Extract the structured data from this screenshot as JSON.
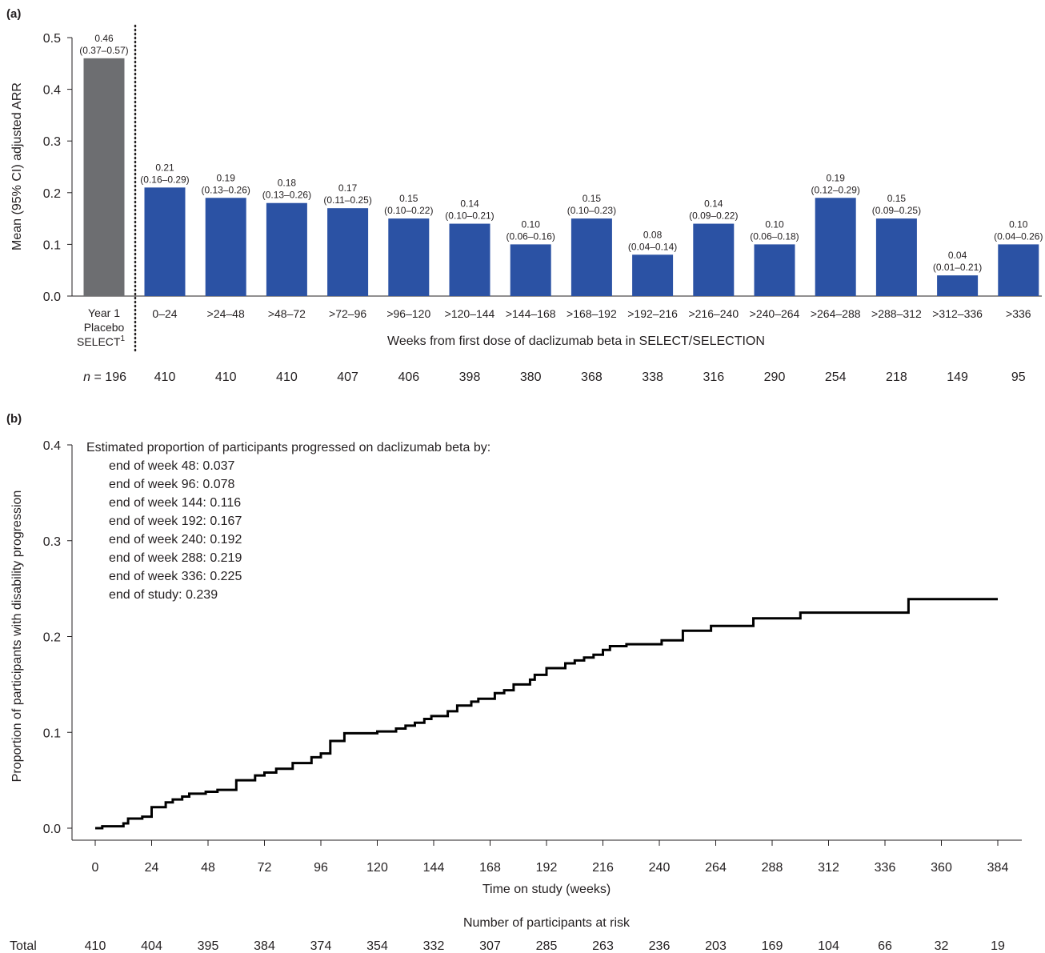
{
  "panel_a": {
    "label": "(a)",
    "n_label_prefix": "n",
    "n_label_suffix": "= 196",
    "n_values": [
      "410",
      "410",
      "410",
      "407",
      "406",
      "398",
      "380",
      "368",
      "338",
      "316",
      "290",
      "254",
      "218",
      "149",
      "95"
    ],
    "placebo_category_lines": [
      "Year 1",
      "Placebo",
      "SELECT"
    ],
    "placebo_superscript": "1"
  },
  "panel_b": {
    "label": "(b)",
    "annotation_title": "Estimated proportion of participants progressed on daclizumab beta by:",
    "annotation_lines": [
      "end of week 48: 0.037",
      "end of week 96: 0.078",
      "end of week 144: 0.116",
      "end of week 192: 0.167",
      "end of week 240: 0.192",
      "end of week 288: 0.219",
      "end of week 336: 0.225",
      "end of study: 0.239"
    ],
    "at_risk_title": "Number of participants at risk",
    "at_risk_row_label": "Total",
    "at_risk_values": [
      "410",
      "404",
      "395",
      "384",
      "374",
      "354",
      "332",
      "307",
      "285",
      "263",
      "236",
      "203",
      "169",
      "104",
      "66",
      "32",
      "19"
    ]
  },
  "colors": {
    "placebo_bar": "#6d6e71",
    "treatment_bar": "#2b52a4",
    "line": "#000000",
    "text": "#231f20"
  },
  "chart_data": [
    {
      "type": "bar",
      "ylabel": "Mean (95% CI) adjusted ARR",
      "xlabel": "Weeks from first dose of daclizumab beta in SELECT/SELECTION",
      "ylim": [
        0,
        0.5
      ],
      "yticks": [
        "0.0",
        "0.1",
        "0.2",
        "0.3",
        "0.4",
        "0.5"
      ],
      "categories": [
        "Year 1 Placebo SELECT1",
        "0–24",
        ">24–48",
        ">48–72",
        ">72–96",
        ">96–120",
        ">120–144",
        ">144–168",
        ">168–192",
        ">192–216",
        ">216–240",
        ">240–264",
        ">264–288",
        ">288–312",
        ">312–336",
        ">336"
      ],
      "values": [
        0.46,
        0.21,
        0.19,
        0.18,
        0.17,
        0.15,
        0.14,
        0.1,
        0.15,
        0.08,
        0.14,
        0.1,
        0.19,
        0.15,
        0.04,
        0.1
      ],
      "value_labels": [
        "0.46",
        "0.21",
        "0.19",
        "0.18",
        "0.17",
        "0.15",
        "0.14",
        "0.10",
        "0.15",
        "0.08",
        "0.14",
        "0.10",
        "0.19",
        "0.15",
        "0.04",
        "0.10"
      ],
      "ci_labels": [
        "(0.37–0.57)",
        "(0.16–0.29)",
        "(0.13–0.26)",
        "(0.13–0.26)",
        "(0.11–0.25)",
        "(0.10–0.22)",
        "(0.10–0.21)",
        "(0.06–0.16)",
        "(0.10–0.23)",
        "(0.04–0.14)",
        "(0.09–0.22)",
        "(0.06–0.18)",
        "(0.12–0.29)",
        "(0.09–0.25)",
        "(0.01–0.21)",
        "(0.04–0.26)"
      ],
      "grid": false
    },
    {
      "type": "line",
      "step": true,
      "ylabel": "Proportion of participants with disability progression",
      "xlabel": "Time on study (weeks)",
      "xlim": [
        0,
        384
      ],
      "ylim": [
        0,
        0.4
      ],
      "xticks": [
        "0",
        "24",
        "48",
        "72",
        "96",
        "120",
        "144",
        "168",
        "192",
        "216",
        "240",
        "264",
        "288",
        "312",
        "336",
        "360",
        "384"
      ],
      "yticks": [
        "0.0",
        "0.1",
        "0.2",
        "0.3",
        "0.4"
      ],
      "grid": false,
      "series": [
        {
          "x": [
            0,
            3,
            12,
            14,
            20,
            24,
            30,
            33,
            37,
            40,
            47,
            52,
            60,
            68,
            72,
            77,
            84,
            92,
            96,
            100,
            106,
            120,
            128,
            132,
            136,
            140,
            143,
            150,
            154,
            160,
            163,
            170,
            174,
            178,
            185,
            187,
            192,
            200,
            204,
            208,
            212,
            216,
            219,
            226,
            232,
            241,
            250,
            254,
            262,
            274,
            280,
            300,
            346,
            384
          ],
          "y": [
            0,
            0.002,
            0.005,
            0.01,
            0.012,
            0.022,
            0.027,
            0.03,
            0.033,
            0.036,
            0.038,
            0.04,
            0.05,
            0.055,
            0.058,
            0.062,
            0.068,
            0.074,
            0.078,
            0.091,
            0.099,
            0.101,
            0.104,
            0.107,
            0.11,
            0.114,
            0.117,
            0.122,
            0.128,
            0.132,
            0.135,
            0.141,
            0.144,
            0.15,
            0.155,
            0.16,
            0.167,
            0.172,
            0.175,
            0.178,
            0.181,
            0.186,
            0.19,
            0.192,
            0.192,
            0.196,
            0.206,
            0.206,
            0.211,
            0.211,
            0.219,
            0.225,
            0.239,
            0.239
          ]
        }
      ]
    }
  ]
}
